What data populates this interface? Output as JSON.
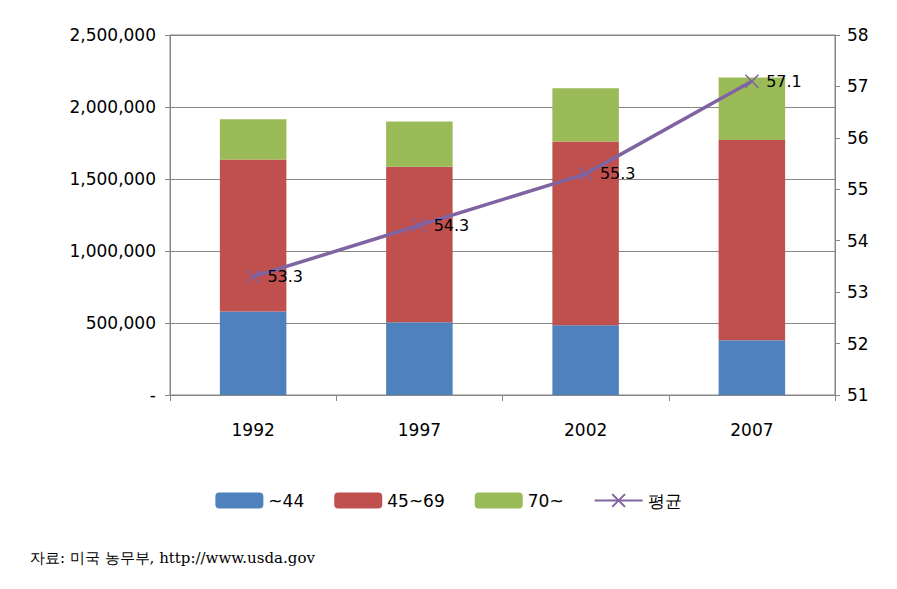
{
  "chart_data": {
    "type": "bar",
    "stacked": true,
    "grid": true,
    "legend": "bottom",
    "categories": [
      "1992",
      "1997",
      "2002",
      "2007"
    ],
    "series": [
      {
        "name": "~44",
        "type": "bar",
        "color": "#4F81BD",
        "values": [
          580000,
          505000,
          485000,
          380000
        ]
      },
      {
        "name": "45~69",
        "type": "bar",
        "color": "#C0504D",
        "values": [
          1055000,
          1080000,
          1275000,
          1390000
        ]
      },
      {
        "name": "70~",
        "type": "bar",
        "color": "#9BBB59",
        "values": [
          280000,
          315000,
          370000,
          435000
        ]
      },
      {
        "name": "평균",
        "type": "line",
        "axis": "y2",
        "color": "#8064A2",
        "marker": "x",
        "data_labels": true,
        "values": [
          53.3,
          54.3,
          55.3,
          57.1
        ]
      }
    ],
    "ylim": [
      0,
      2500000
    ],
    "yticks": [
      {
        "value": 0,
        "label": "-"
      },
      {
        "value": 500000,
        "label": "500,000"
      },
      {
        "value": 1000000,
        "label": "1,000,000"
      },
      {
        "value": 1500000,
        "label": "1,500,000"
      },
      {
        "value": 2000000,
        "label": "2,000,000"
      },
      {
        "value": 2500000,
        "label": "2,500,000"
      }
    ],
    "y2lim": [
      51,
      58
    ],
    "y2ticks": [
      51,
      52,
      53,
      54,
      55,
      56,
      57,
      58
    ],
    "source": "자료: 미국 농무부, http://www.usda.gov"
  }
}
